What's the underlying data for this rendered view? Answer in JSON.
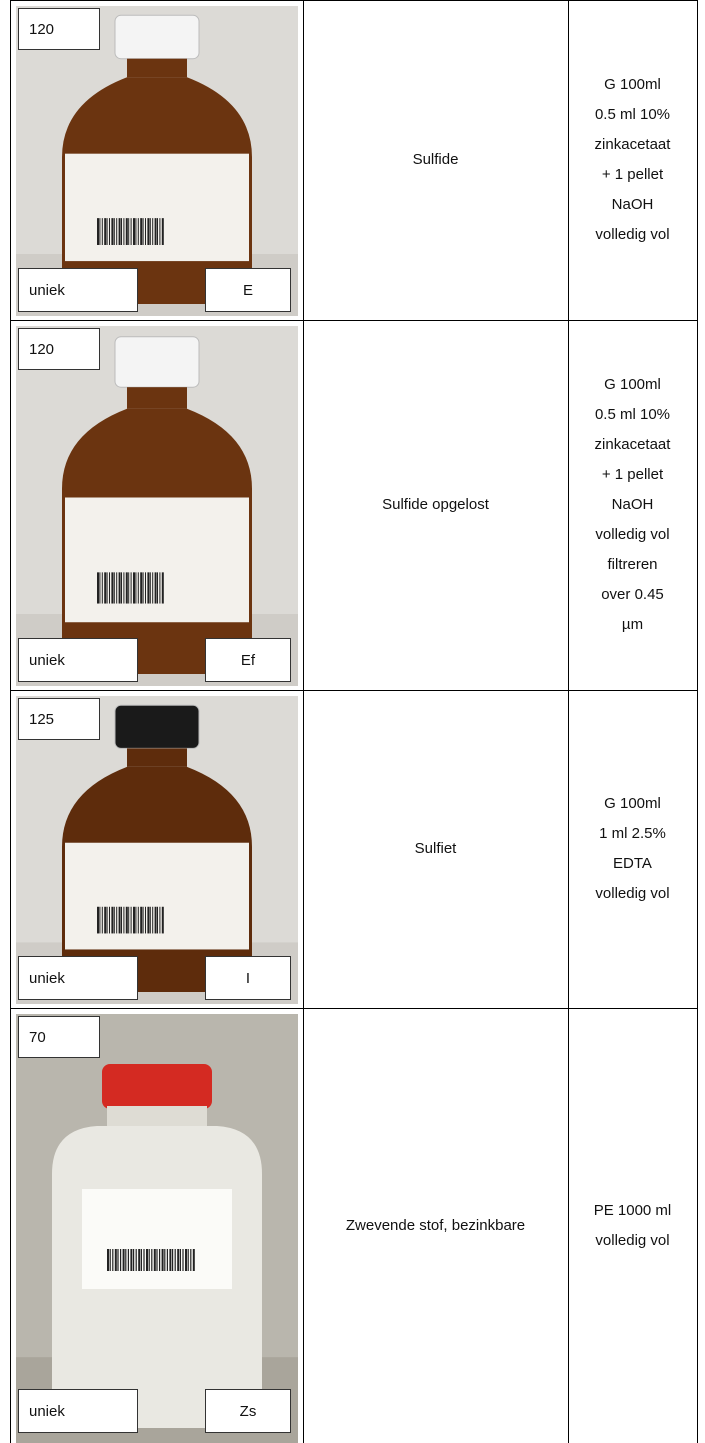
{
  "rows": [
    {
      "volume": "120",
      "tag": "uniek",
      "code": "E",
      "name": "Sulfide",
      "container": [
        "G 100ml",
        "0.5 ml 10%",
        "zinkacetaat",
        "+ 1 pellet",
        "NaOH",
        "volledig vol"
      ]
    },
    {
      "volume": "120",
      "tag": "uniek",
      "code": "Ef",
      "name": "Sulfide opgelost",
      "container": [
        "G 100ml",
        "0.5 ml 10%",
        "zinkacetaat",
        "+ 1 pellet",
        "NaOH",
        "volledig vol",
        "filtreren",
        "over 0.45",
        "µm"
      ]
    },
    {
      "volume": "125",
      "tag": "uniek",
      "code": "I",
      "name": "Sulfiet",
      "container": [
        "G 100ml",
        "1 ml 2.5%",
        "EDTA",
        "volledig vol"
      ]
    },
    {
      "volume": "70",
      "tag": "uniek",
      "code": "Zs",
      "name": "Zwevende stof, bezinkbare",
      "container": [
        "PE 1000 ml",
        "volledig vol"
      ]
    }
  ]
}
